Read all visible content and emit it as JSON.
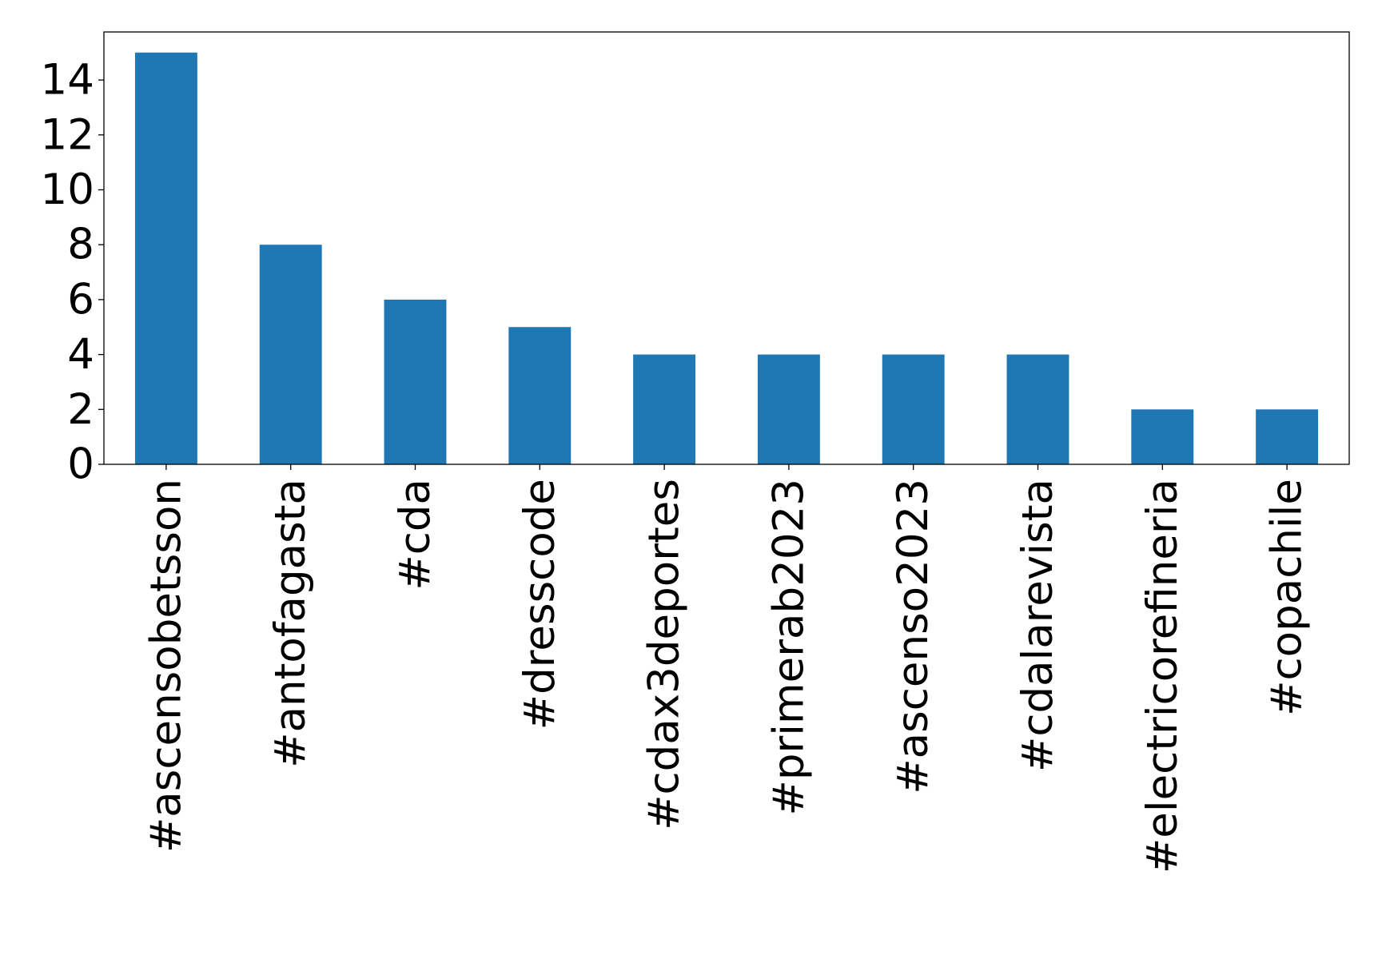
{
  "chart_data": {
    "type": "bar",
    "title": "",
    "xlabel": "",
    "ylabel": "",
    "categories": [
      "#ascensobetsson",
      "#antofagasta",
      "#cda",
      "#dresscode",
      "#cdax3deportes",
      "#primerab2023",
      "#ascenso2023",
      "#cdalarevista",
      "#electricorefineria",
      "#copachile"
    ],
    "values": [
      15,
      8,
      6,
      5,
      4,
      4,
      4,
      4,
      2,
      2
    ],
    "ylim": [
      0,
      15.75
    ],
    "yticks": [
      0,
      2,
      4,
      6,
      8,
      10,
      12,
      14
    ],
    "bar_color": "#1f77b4",
    "grid": false,
    "legend": "none"
  }
}
